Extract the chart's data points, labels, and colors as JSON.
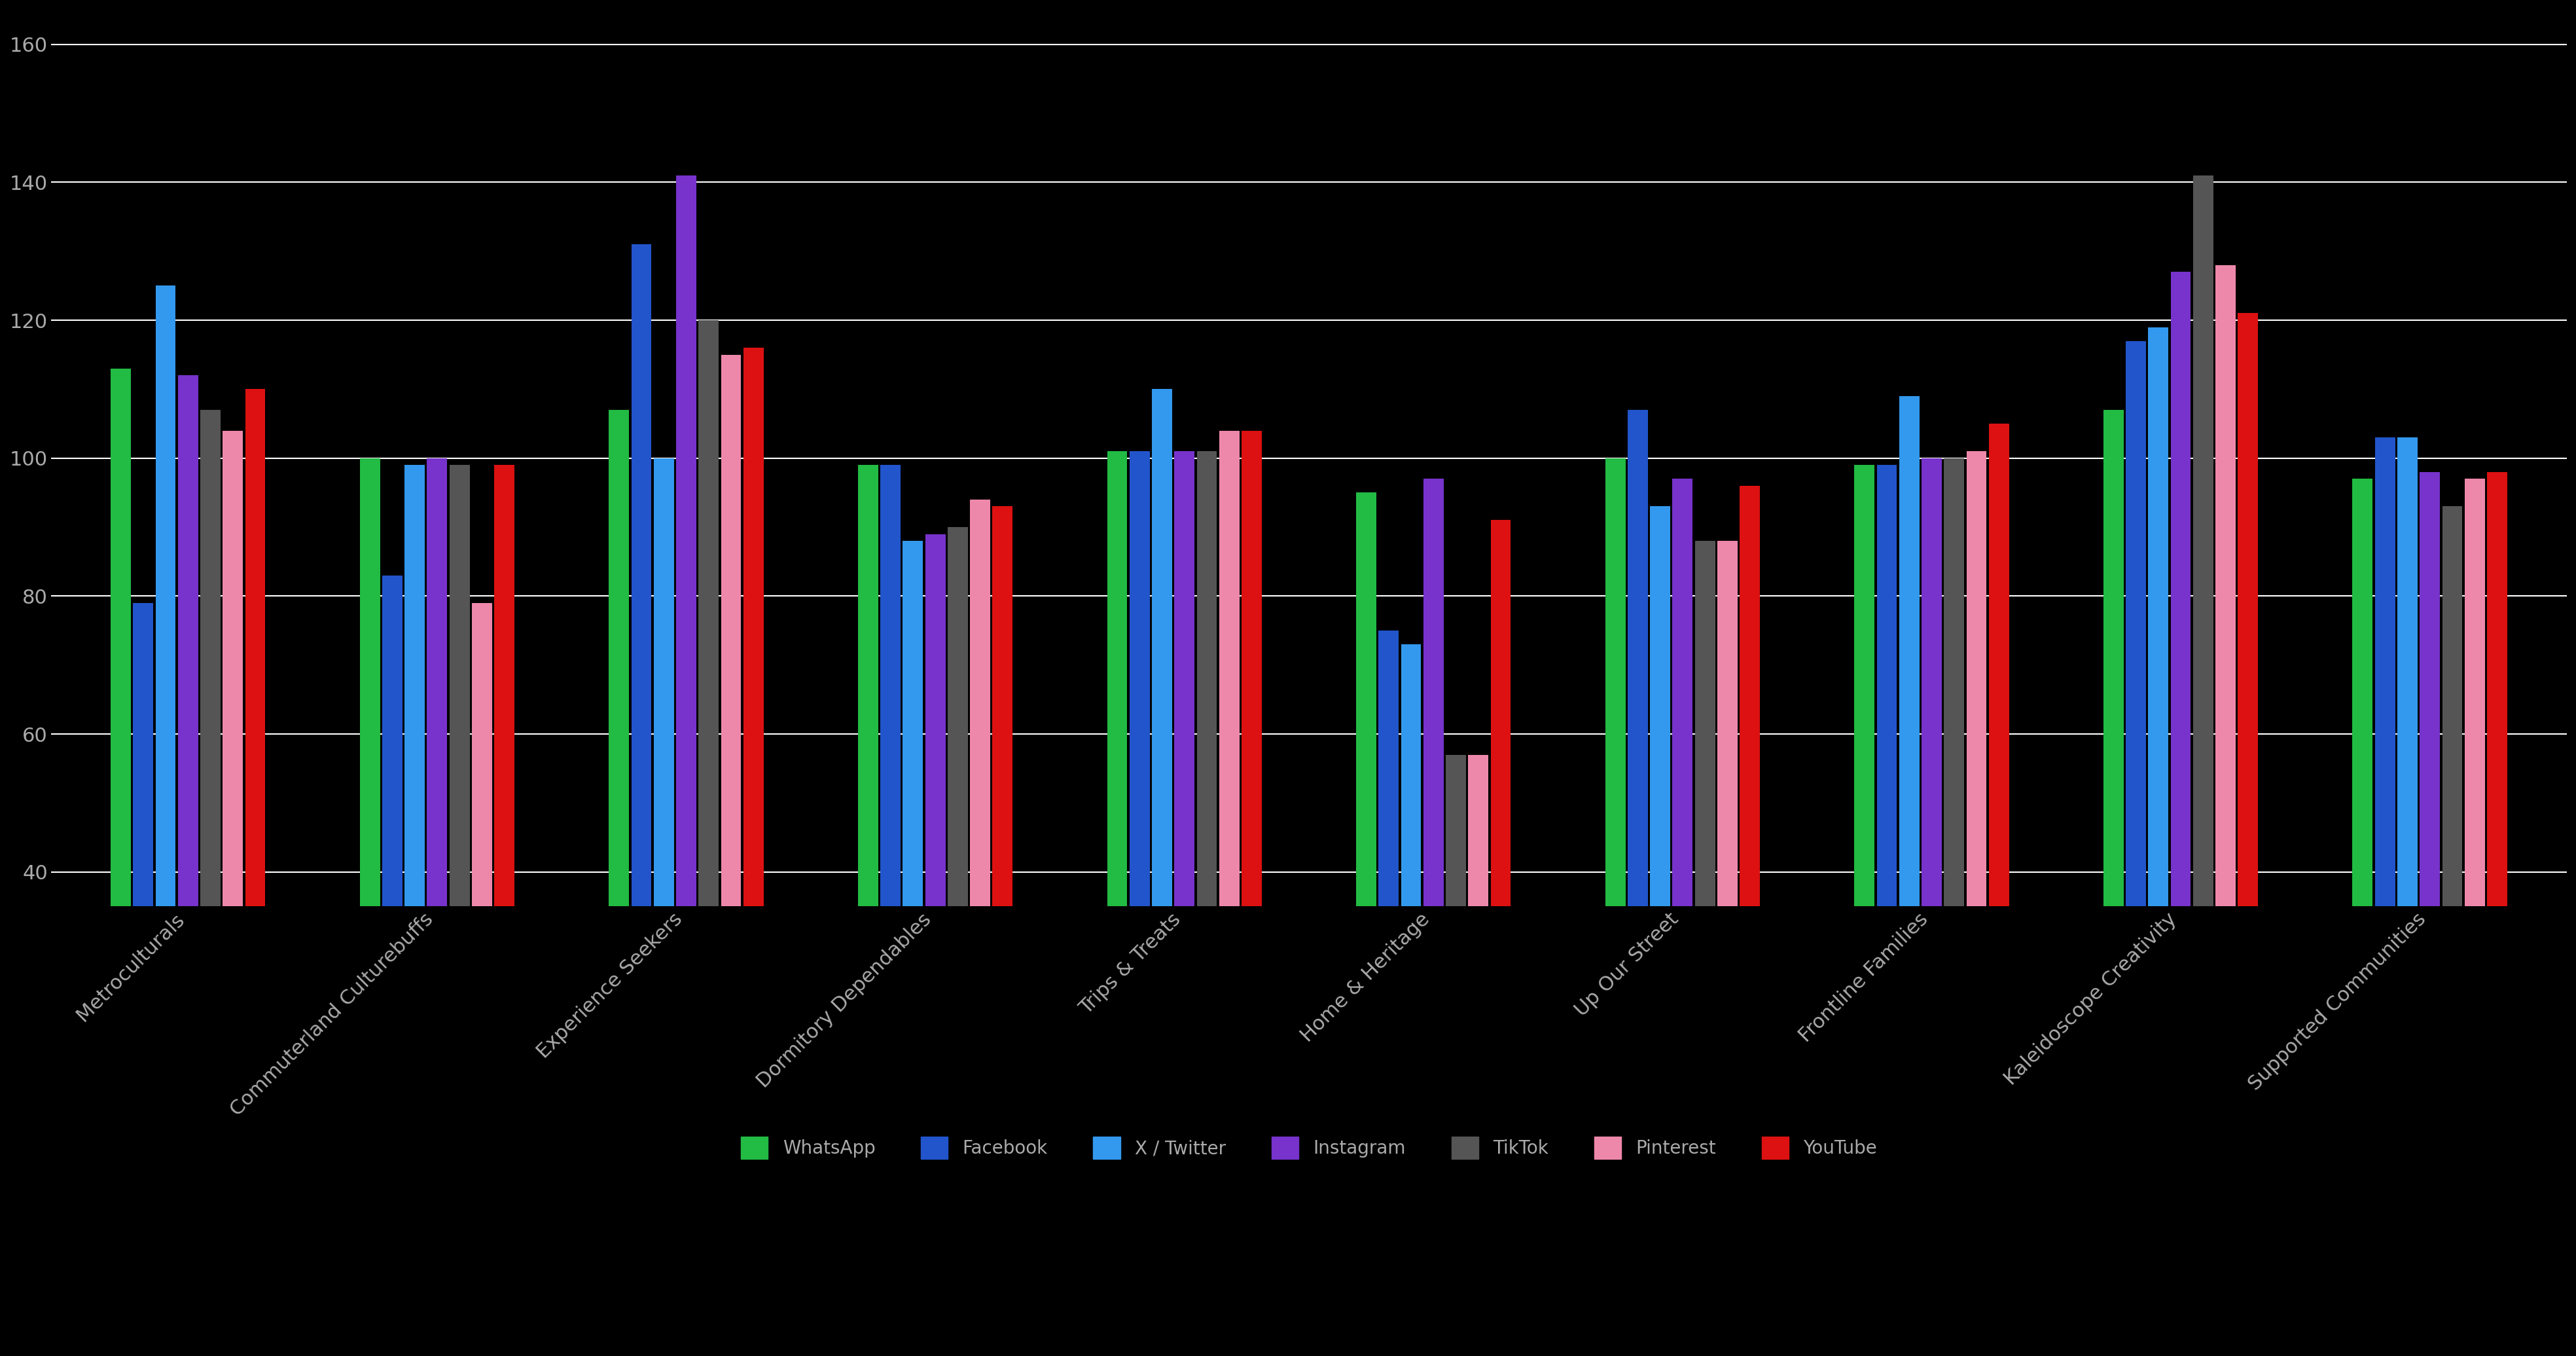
{
  "categories": [
    "Metroculturals",
    "Commuterland Culturebuffs",
    "Experience Seekers",
    "Dormitory Dependables",
    "Trips & Treats",
    "Home & Heritage",
    "Up Our Street",
    "Frontline Families",
    "Kaleidoscope Creativity",
    "Supported Communities"
  ],
  "platforms": [
    "WhatsApp",
    "Facebook",
    "X / Twitter",
    "Instagram",
    "TikTok",
    "Pinterest",
    "YouTube"
  ],
  "colors": [
    "#22bb44",
    "#2255cc",
    "#3399ee",
    "#7733cc",
    "#555555",
    "#ee88aa",
    "#dd1111"
  ],
  "data": {
    "WhatsApp": [
      113,
      100,
      107,
      99,
      101,
      95,
      100,
      99,
      107,
      97
    ],
    "Facebook": [
      79,
      83,
      131,
      99,
      101,
      75,
      107,
      99,
      117,
      103
    ],
    "X / Twitter": [
      125,
      99,
      100,
      88,
      110,
      73,
      93,
      109,
      119,
      103
    ],
    "Instagram": [
      112,
      100,
      141,
      89,
      101,
      97,
      97,
      100,
      127,
      98
    ],
    "TikTok": [
      107,
      99,
      120,
      90,
      101,
      57,
      88,
      100,
      141,
      93
    ],
    "Pinterest": [
      104,
      79,
      115,
      94,
      104,
      57,
      88,
      101,
      128,
      97
    ],
    "YouTube": [
      110,
      99,
      116,
      93,
      104,
      91,
      96,
      105,
      121,
      98
    ]
  },
  "ylim": [
    35,
    165
  ],
  "yticks": [
    40,
    60,
    80,
    100,
    120,
    140,
    160
  ],
  "background_color": "#000000",
  "text_color": "#aaaaaa",
  "grid_color": "#ffffff",
  "bar_width": 0.09,
  "tick_fontsize": 22,
  "legend_fontsize": 20,
  "xlabel_rotation": 45
}
